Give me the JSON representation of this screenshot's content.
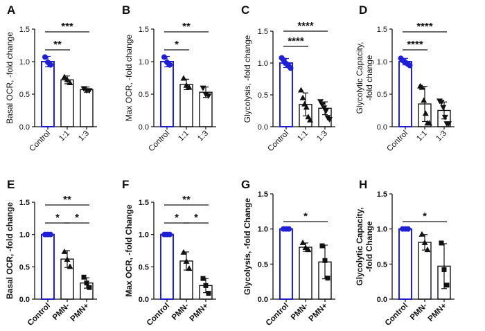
{
  "figure_colors": {
    "control": "#1f1fd6",
    "treated": "#111111",
    "axis": "#111111"
  },
  "chart_data": [
    {
      "panel": "A",
      "type": "bar",
      "ylabel": "Basal OCR, -fold change",
      "categories": [
        "Control",
        "1:1",
        "1:3"
      ],
      "values": [
        1.0,
        0.72,
        0.57
      ],
      "errors": [
        0.08,
        0.06,
        0.04
      ],
      "points": [
        [
          1.07,
          0.99,
          0.95
        ],
        [
          0.76,
          0.72,
          0.67
        ],
        [
          0.59,
          0.56,
          0.56
        ]
      ],
      "markers": [
        "circle",
        "triangle",
        "inv_triangle"
      ],
      "ylim": [
        0,
        1.5
      ],
      "yticks": [
        0.0,
        0.5,
        1.0,
        1.5
      ],
      "sig": [
        {
          "from": 0,
          "to": 1,
          "label": "**"
        },
        {
          "from": 0,
          "to": 2,
          "label": "***"
        }
      ]
    },
    {
      "panel": "B",
      "type": "bar",
      "ylabel": "Max OCR, -fold change",
      "categories": [
        "Control",
        "1:1",
        "1:3"
      ],
      "values": [
        1.0,
        0.65,
        0.53
      ],
      "errors": [
        0.08,
        0.08,
        0.08
      ],
      "points": [
        [
          1.07,
          0.99,
          0.95
        ],
        [
          0.74,
          0.63,
          0.6
        ],
        [
          0.6,
          0.5,
          0.48
        ]
      ],
      "markers": [
        "circle",
        "triangle",
        "inv_triangle"
      ],
      "ylim": [
        0,
        1.5
      ],
      "yticks": [
        0.0,
        0.5,
        1.0,
        1.5
      ],
      "sig": [
        {
          "from": 0,
          "to": 1,
          "label": "*"
        },
        {
          "from": 0,
          "to": 2,
          "label": "**"
        }
      ]
    },
    {
      "panel": "C",
      "type": "bar",
      "ylabel": "Glycolysis, -fold change",
      "categories": [
        "Control",
        "1:1",
        "1:3"
      ],
      "values": [
        1.0,
        0.35,
        0.29
      ],
      "errors": [
        0.07,
        0.18,
        0.1
      ],
      "points": [
        [
          1.08,
          1.05,
          1.0,
          0.98,
          0.95,
          0.92
        ],
        [
          0.57,
          0.45,
          0.35,
          0.3,
          0.15,
          0.1
        ],
        [
          0.4,
          0.35,
          0.3,
          0.25,
          0.15,
          0.12
        ]
      ],
      "markers": [
        "circle",
        "triangle",
        "inv_triangle"
      ],
      "ylim": [
        0,
        1.5
      ],
      "yticks": [
        0.0,
        0.5,
        1.0,
        1.5
      ],
      "sig": [
        {
          "from": 0,
          "to": 1,
          "label": "****"
        },
        {
          "from": 0,
          "to": 2,
          "label": "****"
        }
      ]
    },
    {
      "panel": "D",
      "type": "bar",
      "ylabel": "Glycolytic Capacity, -fold change",
      "ylabel_lines": [
        "Glycolytic Capacity,",
        "-fold change"
      ],
      "categories": [
        "Control",
        "1:1",
        "1:3"
      ],
      "values": [
        1.0,
        0.35,
        0.25
      ],
      "errors": [
        0.05,
        0.27,
        0.13
      ],
      "points": [
        [
          1.05,
          1.02,
          1.0,
          0.98,
          0.96,
          0.94
        ],
        [
          0.62,
          0.6,
          0.4,
          0.2,
          0.05,
          0.05
        ],
        [
          0.4,
          0.38,
          0.3,
          0.15,
          0.05,
          0.05
        ]
      ],
      "markers": [
        "circle",
        "triangle",
        "inv_triangle"
      ],
      "ylim": [
        0,
        1.5
      ],
      "yticks": [
        0.0,
        0.5,
        1.0,
        1.5
      ],
      "sig": [
        {
          "from": 0,
          "to": 1,
          "label": "****"
        },
        {
          "from": 0,
          "to": 2,
          "label": "****"
        }
      ]
    },
    {
      "panel": "E",
      "type": "bar",
      "bold": true,
      "ylabel": "Basal OCR, -fold change",
      "categories": [
        "Control",
        "PMN-",
        "PMN+"
      ],
      "values": [
        1.0,
        0.62,
        0.25
      ],
      "errors": [
        0.0,
        0.13,
        0.08
      ],
      "points": [
        [
          1.0,
          1.0,
          1.0
        ],
        [
          0.73,
          0.61,
          0.5
        ],
        [
          0.34,
          0.25,
          0.18
        ]
      ],
      "markers": [
        "circle",
        "triangle",
        "square"
      ],
      "ylim": [
        0,
        1.5
      ],
      "yticks": [
        0.0,
        0.5,
        1.0,
        1.5
      ],
      "sig": [
        {
          "from": 0,
          "to": 1,
          "label": "*"
        },
        {
          "from": 1,
          "to": 2,
          "label": "*"
        },
        {
          "from": 0,
          "to": 2,
          "label": "**"
        }
      ]
    },
    {
      "panel": "F",
      "type": "bar",
      "bold": true,
      "ylabel": "Max OCR, -fold Change",
      "categories": [
        "Control",
        "PMN-",
        "PMN+"
      ],
      "values": [
        1.0,
        0.59,
        0.21
      ],
      "errors": [
        0.0,
        0.14,
        0.11
      ],
      "points": [
        [
          1.0,
          1.0,
          1.0
        ],
        [
          0.72,
          0.58,
          0.47
        ],
        [
          0.32,
          0.21,
          0.09
        ]
      ],
      "markers": [
        "circle",
        "triangle",
        "square"
      ],
      "ylim": [
        0,
        1.5
      ],
      "yticks": [
        0.0,
        0.5,
        1.0,
        1.5
      ],
      "sig": [
        {
          "from": 0,
          "to": 1,
          "label": "*"
        },
        {
          "from": 1,
          "to": 2,
          "label": "*"
        },
        {
          "from": 0,
          "to": 2,
          "label": "**"
        }
      ]
    },
    {
      "panel": "G",
      "type": "bar",
      "bold": true,
      "ylabel": "Glycolysis, -fold  Change",
      "categories": [
        "Control",
        "PMN-",
        "PMN+"
      ],
      "values": [
        1.0,
        0.74,
        0.53
      ],
      "errors": [
        0.0,
        0.06,
        0.24
      ],
      "points": [
        [
          1.0,
          1.0,
          1.0
        ],
        [
          0.8,
          0.73,
          0.7
        ],
        [
          0.76,
          0.55,
          0.3
        ]
      ],
      "markers": [
        "circle",
        "triangle",
        "square"
      ],
      "ylim": [
        0,
        1.5
      ],
      "yticks": [
        0.0,
        0.5,
        1.0,
        1.5
      ],
      "sig": [
        {
          "from": 0,
          "to": 2,
          "label": "*"
        }
      ]
    },
    {
      "panel": "H",
      "type": "bar",
      "bold": true,
      "ylabel": "Glycolytic Capacity, -fold  Change",
      "ylabel_lines": [
        "Glycolytic Capacity,",
        "-fold  Change"
      ],
      "categories": [
        "Control",
        "PMN-",
        "PMN+"
      ],
      "values": [
        1.0,
        0.81,
        0.47
      ],
      "errors": [
        0.0,
        0.11,
        0.32
      ],
      "points": [
        [
          1.0,
          1.0,
          1.0
        ],
        [
          0.92,
          0.8,
          0.7
        ],
        [
          0.8,
          0.42,
          0.2
        ]
      ],
      "markers": [
        "circle",
        "triangle",
        "square"
      ],
      "ylim": [
        0,
        1.5
      ],
      "yticks": [
        0.0,
        0.5,
        1.0,
        1.5
      ],
      "sig": [
        {
          "from": 0,
          "to": 2,
          "label": "*"
        }
      ]
    }
  ]
}
